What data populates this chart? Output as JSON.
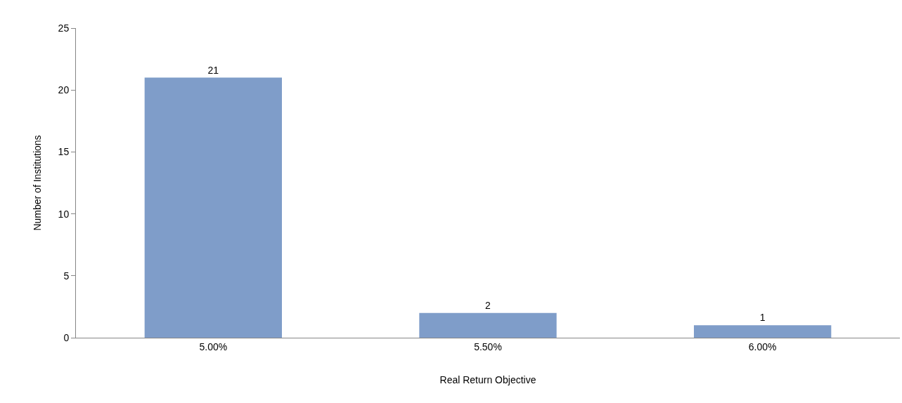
{
  "chart_data": {
    "type": "bar",
    "xlabel": "Real Return Objective",
    "ylabel": "Number of Institutions",
    "categories": [
      "5.00%",
      "5.50%",
      "6.00%"
    ],
    "values": [
      21,
      2,
      1
    ],
    "color": "#7f9dc9",
    "ylim": [
      0,
      25
    ],
    "yticks": [
      0,
      5,
      10,
      15,
      20,
      25
    ],
    "data_labels": true
  }
}
